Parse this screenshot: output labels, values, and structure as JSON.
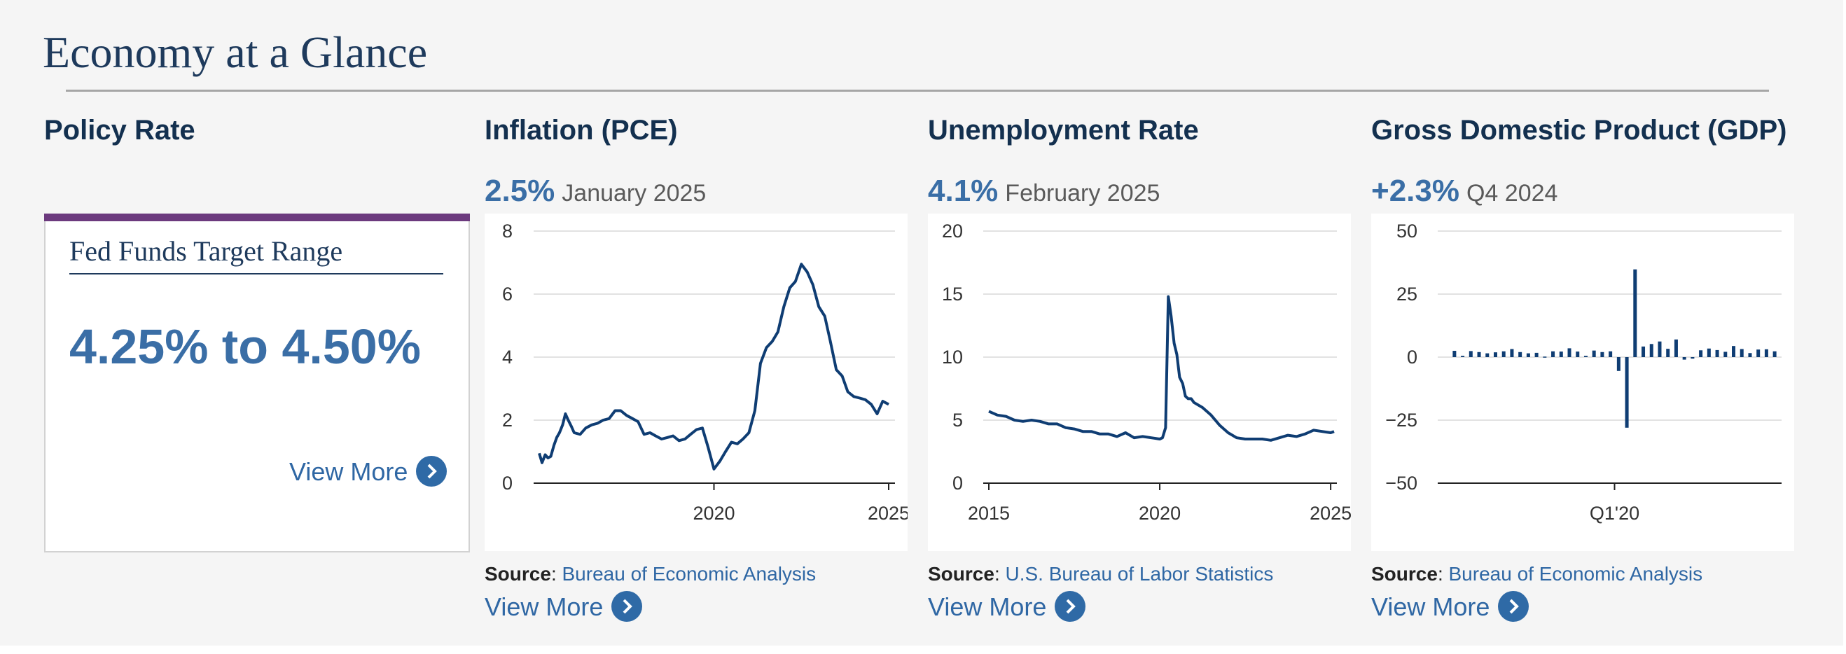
{
  "page": {
    "title": "Economy at a Glance"
  },
  "policy": {
    "heading": "Policy Rate",
    "card_title": "Fed Funds Target Range",
    "range": "4.25% to 4.50%",
    "view_more": "View More"
  },
  "inflation": {
    "heading": "Inflation (PCE)",
    "value": "2.5%",
    "period": "January 2025",
    "source_label": "Source",
    "source_name": "Bureau of Economic Analysis",
    "view_more": "View More"
  },
  "unemployment": {
    "heading": "Unemployment Rate",
    "value": "4.1%",
    "period": "February 2025",
    "source_label": "Source",
    "source_name": "U.S. Bureau of Labor Statistics",
    "view_more": "View More"
  },
  "gdp": {
    "heading": "Gross Domestic Product (GDP)",
    "value": "+2.3%",
    "period": "Q4 2024",
    "source_label": "Source",
    "source_name": "Bureau of Economic Analysis",
    "view_more": "View More"
  },
  "colors": {
    "series": "#0f3d73",
    "accent": "#3a6ea6",
    "policy_bar": "#6c3a7e",
    "grid": "#d9d9d9"
  },
  "chart_data": [
    {
      "type": "line",
      "name": "inflation",
      "ylim": [
        0,
        8
      ],
      "xlim": [
        2015.0,
        2025.1
      ],
      "yticks": [
        "0",
        "2",
        "4",
        "6",
        "8"
      ],
      "yticks_values": [
        0,
        2,
        4,
        6,
        8
      ],
      "xticks": [
        "2020",
        "2025"
      ],
      "xticks_values": [
        2020,
        2025
      ],
      "grid": true,
      "x": [
        2015.0,
        2015.08,
        2015.17,
        2015.25,
        2015.33,
        2015.42,
        2015.5,
        2015.58,
        2015.67,
        2015.75,
        2015.83,
        2015.92,
        2016.0,
        2016.17,
        2016.33,
        2016.5,
        2016.67,
        2016.83,
        2017.0,
        2017.17,
        2017.33,
        2017.5,
        2017.67,
        2017.83,
        2018.0,
        2018.17,
        2018.33,
        2018.5,
        2018.67,
        2018.83,
        2019.0,
        2019.17,
        2019.33,
        2019.5,
        2019.67,
        2019.83,
        2020.0,
        2020.17,
        2020.33,
        2020.5,
        2020.67,
        2020.83,
        2021.0,
        2021.17,
        2021.33,
        2021.5,
        2021.67,
        2021.83,
        2022.0,
        2022.17,
        2022.33,
        2022.5,
        2022.67,
        2022.83,
        2023.0,
        2023.17,
        2023.33,
        2023.5,
        2023.67,
        2023.83,
        2024.0,
        2024.17,
        2024.33,
        2024.5,
        2024.67,
        2024.83,
        2025.0
      ],
      "y": [
        0.95,
        0.65,
        0.9,
        0.8,
        0.85,
        1.2,
        1.45,
        1.6,
        1.85,
        2.2,
        2.0,
        1.8,
        1.6,
        1.55,
        1.75,
        1.85,
        1.9,
        2.0,
        2.05,
        2.3,
        2.3,
        2.15,
        2.05,
        1.95,
        1.55,
        1.6,
        1.5,
        1.4,
        1.45,
        1.5,
        1.35,
        1.4,
        1.55,
        1.7,
        1.75,
        1.15,
        0.45,
        0.7,
        1.0,
        1.3,
        1.25,
        1.4,
        1.6,
        2.3,
        3.8,
        4.3,
        4.5,
        4.8,
        5.6,
        6.2,
        6.4,
        6.95,
        6.7,
        6.3,
        5.6,
        5.3,
        4.5,
        3.6,
        3.4,
        2.9,
        2.75,
        2.7,
        2.65,
        2.5,
        2.2,
        2.6,
        2.5
      ]
    },
    {
      "type": "line",
      "name": "unemployment",
      "ylim": [
        0,
        20
      ],
      "xlim": [
        2015.0,
        2025.1
      ],
      "yticks": [
        "0",
        "5",
        "10",
        "15",
        "20"
      ],
      "yticks_values": [
        0,
        5,
        10,
        15,
        20
      ],
      "xticks": [
        "2015",
        "2020",
        "2025"
      ],
      "xticks_values": [
        2015,
        2020,
        2025
      ],
      "grid": true,
      "x": [
        2015.0,
        2015.25,
        2015.5,
        2015.75,
        2016.0,
        2016.25,
        2016.5,
        2016.75,
        2017.0,
        2017.25,
        2017.5,
        2017.75,
        2018.0,
        2018.25,
        2018.5,
        2018.75,
        2019.0,
        2019.25,
        2019.5,
        2019.75,
        2020.0,
        2020.08,
        2020.17,
        2020.25,
        2020.33,
        2020.42,
        2020.5,
        2020.58,
        2020.67,
        2020.75,
        2020.83,
        2020.92,
        2021.0,
        2021.25,
        2021.5,
        2021.75,
        2022.0,
        2022.25,
        2022.5,
        2022.75,
        2023.0,
        2023.25,
        2023.5,
        2023.75,
        2024.0,
        2024.25,
        2024.5,
        2024.75,
        2025.0,
        2025.1
      ],
      "y": [
        5.7,
        5.4,
        5.3,
        5.0,
        4.9,
        5.0,
        4.9,
        4.7,
        4.7,
        4.4,
        4.3,
        4.1,
        4.1,
        3.9,
        3.9,
        3.7,
        4.0,
        3.6,
        3.7,
        3.6,
        3.5,
        3.6,
        4.4,
        14.8,
        13.3,
        11.1,
        10.2,
        8.4,
        7.9,
        6.9,
        6.7,
        6.7,
        6.4,
        6.0,
        5.4,
        4.6,
        4.0,
        3.6,
        3.5,
        3.5,
        3.5,
        3.4,
        3.6,
        3.8,
        3.7,
        3.9,
        4.2,
        4.1,
        4.0,
        4.1
      ]
    },
    {
      "type": "bar",
      "name": "gdp",
      "ylim": [
        -50,
        50
      ],
      "yticks": [
        "50",
        "25",
        "0",
        "−25",
        "−50"
      ],
      "yticks_values": [
        50,
        25,
        0,
        -25,
        -50
      ],
      "xticks": [
        "Q1'20"
      ],
      "xtick_index": 20,
      "grid": true,
      "values": [
        2.5,
        0.5,
        2.4,
        2.0,
        1.5,
        1.9,
        2.3,
        3.2,
        2.0,
        1.5,
        1.7,
        0.2,
        2.3,
        2.2,
        3.5,
        2.2,
        0.5,
        2.6,
        2.0,
        2.3,
        -5.5,
        -28.0,
        34.8,
        4.2,
        5.2,
        6.2,
        3.3,
        7.0,
        -1.0,
        -0.6,
        2.7,
        3.4,
        2.8,
        2.1,
        4.4,
        3.2,
        1.6,
        3.0,
        3.1,
        2.3
      ]
    }
  ]
}
